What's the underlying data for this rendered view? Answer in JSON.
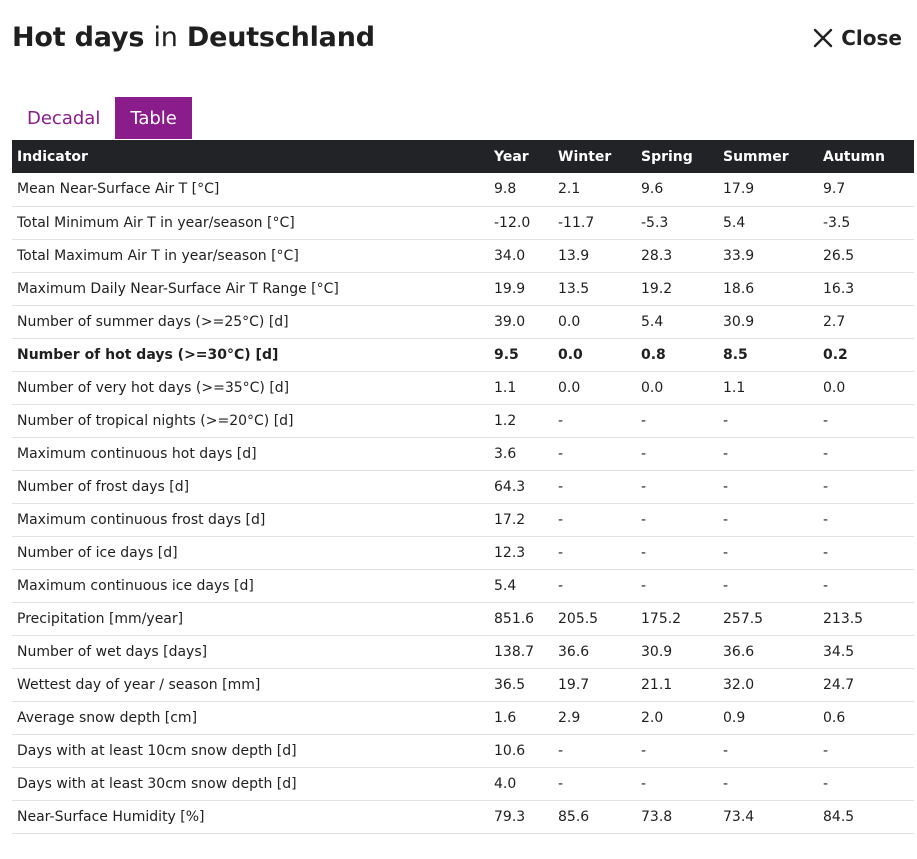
{
  "header": {
    "title_part1": "Hot days",
    "title_part2": "in",
    "title_part3": "Deutschland",
    "close_label": "Close"
  },
  "tabs": [
    {
      "label": "Decadal",
      "active": false
    },
    {
      "label": "Table",
      "active": true
    }
  ],
  "colors": {
    "accent": "#8a1c8c",
    "table_header_bg": "#222326"
  },
  "table": {
    "columns": [
      "Indicator",
      "Year",
      "Winter",
      "Spring",
      "Summer",
      "Autumn"
    ],
    "rows": [
      [
        "Mean Near-Surface Air T [°C]",
        "9.8",
        "2.1",
        "9.6",
        "17.9",
        "9.7"
      ],
      [
        "Total Minimum Air T in year/season [°C]",
        "-12.0",
        "-11.7",
        "-5.3",
        "5.4",
        "-3.5"
      ],
      [
        "Total Maximum Air T in year/season [°C]",
        "34.0",
        "13.9",
        "28.3",
        "33.9",
        "26.5"
      ],
      [
        "Maximum Daily Near-Surface Air T Range [°C]",
        "19.9",
        "13.5",
        "19.2",
        "18.6",
        "16.3"
      ],
      [
        "Number of summer days (>=25°C) [d]",
        "39.0",
        "0.0",
        "5.4",
        "30.9",
        "2.7"
      ],
      [
        "Number of hot days (>=30°C) [d]",
        "9.5",
        "0.0",
        "0.8",
        "8.5",
        "0.2"
      ],
      [
        "Number of very hot days (>=35°C) [d]",
        "1.1",
        "0.0",
        "0.0",
        "1.1",
        "0.0"
      ],
      [
        "Number of tropical nights (>=20°C) [d]",
        "1.2",
        "-",
        "-",
        "-",
        "-"
      ],
      [
        "Maximum continuous hot days [d]",
        "3.6",
        "-",
        "-",
        "-",
        "-"
      ],
      [
        "Number of frost days [d]",
        "64.3",
        "-",
        "-",
        "-",
        "-"
      ],
      [
        "Maximum continuous frost days [d]",
        "17.2",
        "-",
        "-",
        "-",
        "-"
      ],
      [
        "Number of ice days [d]",
        "12.3",
        "-",
        "-",
        "-",
        "-"
      ],
      [
        "Maximum continuous ice days [d]",
        "5.4",
        "-",
        "-",
        "-",
        "-"
      ],
      [
        "Precipitation [mm/year]",
        "851.6",
        "205.5",
        "175.2",
        "257.5",
        "213.5"
      ],
      [
        "Number of wet days [days]",
        "138.7",
        "36.6",
        "30.9",
        "36.6",
        "34.5"
      ],
      [
        "Wettest day of year / season [mm]",
        "36.5",
        "19.7",
        "21.1",
        "32.0",
        "24.7"
      ],
      [
        "Average snow depth [cm]",
        "1.6",
        "2.9",
        "2.0",
        "0.9",
        "0.6"
      ],
      [
        "Days with at least 10cm snow depth [d]",
        "10.6",
        "-",
        "-",
        "-",
        "-"
      ],
      [
        "Days with at least 30cm snow depth [d]",
        "4.0",
        "-",
        "-",
        "-",
        "-"
      ],
      [
        "Near-Surface Humidity [%]",
        "79.3",
        "85.6",
        "73.8",
        "73.4",
        "84.5"
      ]
    ],
    "highlighted_row_index": 5
  }
}
